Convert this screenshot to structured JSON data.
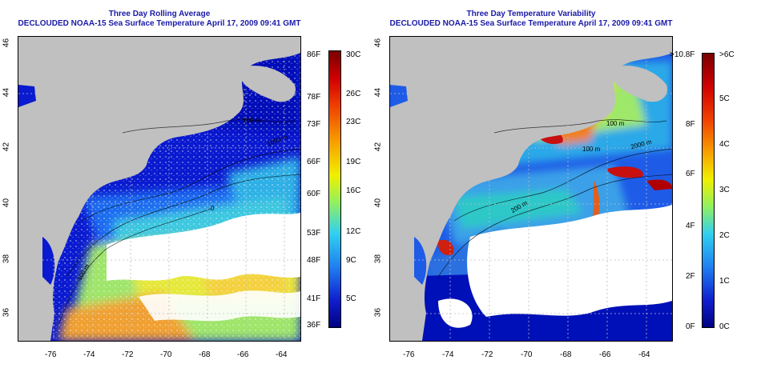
{
  "left": {
    "title_line1": "Three Day Rolling Average",
    "title_line2": "DECLOUDED NOAA-15 Sea Surface Temperature April 17, 2009 09:41 GMT",
    "contour_labels": [
      "100 m",
      "1000 m",
      "100 m",
      "0"
    ],
    "colorbar": {
      "f_labels": [
        "86F",
        "78F",
        "73F",
        "66F",
        "60F",
        "53F",
        "48F",
        "41F",
        "36F"
      ],
      "c_labels": [
        "30C",
        "26C",
        "23C",
        "19C",
        "16C",
        "12C",
        "9C",
        "5C"
      ],
      "c_fractions": [
        0.0,
        0.15,
        0.28,
        0.43,
        0.56,
        0.71,
        0.84,
        0.96
      ]
    }
  },
  "right": {
    "title_line1": "Three Day Temperature Variability",
    "title_line2": "DECLOUDED NOAA-15 Sea Surface Temperature April 17, 2009 09:41 GMT",
    "contour_labels": [
      "100 m",
      "100 m",
      "2000 m",
      "200 m"
    ],
    "colorbar": {
      "f_labels": [
        ">10.8F",
        "8F",
        "6F",
        "4F",
        "2F",
        "0F"
      ],
      "c_labels": [
        ">6C",
        "5C",
        "4C",
        "3C",
        "2C",
        "1C",
        "0C"
      ],
      "c_fractions": [
        0.0,
        0.17,
        0.33,
        0.5,
        0.67,
        0.83,
        1.0
      ]
    }
  },
  "axes": {
    "lon_ticks": [
      "-76",
      "-74",
      "-72",
      "-70",
      "-68",
      "-66",
      "-64"
    ],
    "lat_ticks": [
      "46",
      "44",
      "42",
      "40",
      "38",
      "36"
    ]
  },
  "colors": {
    "land": "#c0c0c0",
    "cloud": "#ffffff",
    "grid": "#bdbdbd",
    "title": "#1a1aa8"
  }
}
